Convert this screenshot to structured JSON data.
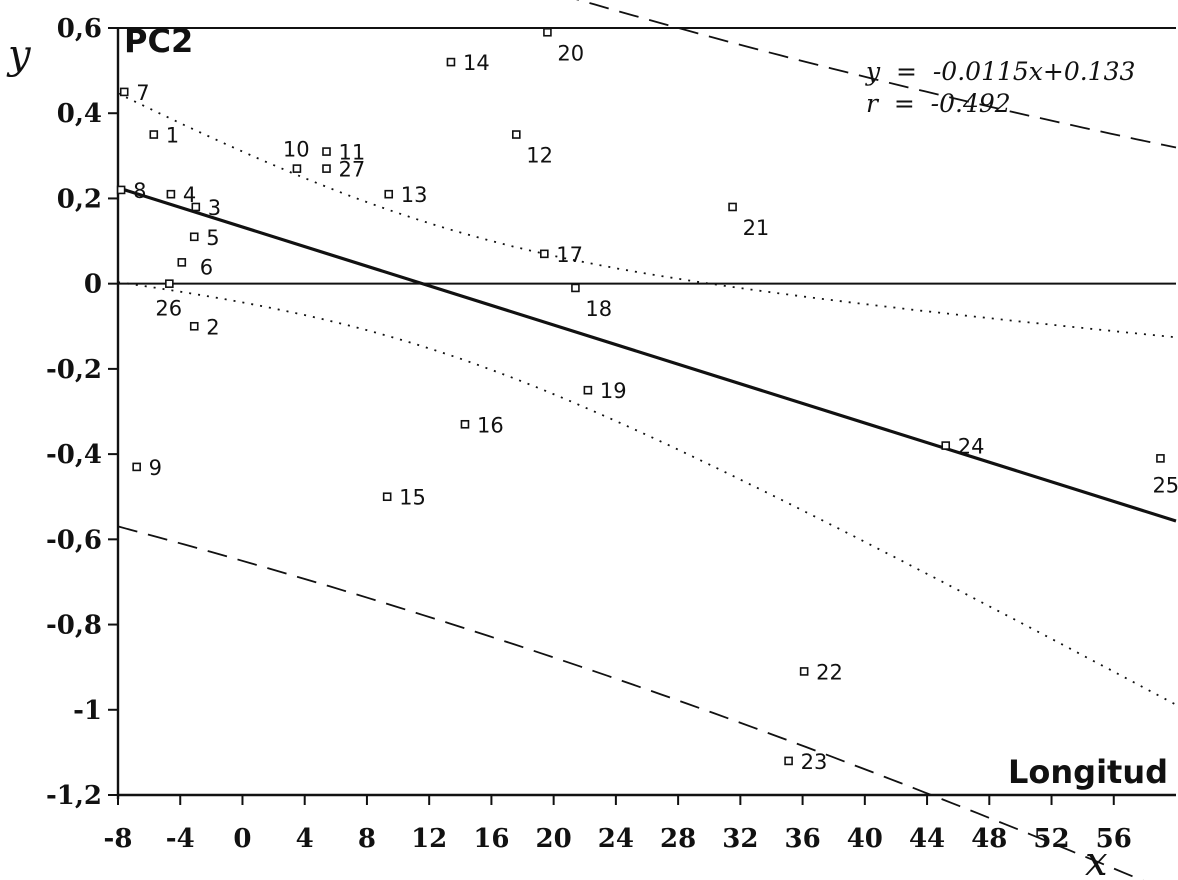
{
  "chart_data": {
    "type": "scatter",
    "ylabel": "y",
    "xlabel": "x",
    "panel_label": "PC2",
    "corner_label": "Longitud",
    "equation": "y  =  -0.0115x+0.133",
    "correlation": "r  =  -0.492",
    "xlim": [
      -8,
      60
    ],
    "ylim": [
      -1.2,
      0.6
    ],
    "x_ticks": [
      {
        "value": -8,
        "label": "-8"
      },
      {
        "value": -4,
        "label": "-4"
      },
      {
        "value": 0,
        "label": "0"
      },
      {
        "value": 4,
        "label": "4"
      },
      {
        "value": 8,
        "label": "8"
      },
      {
        "value": 12,
        "label": "12"
      },
      {
        "value": 16,
        "label": "16"
      },
      {
        "value": 20,
        "label": "20"
      },
      {
        "value": 24,
        "label": "24"
      },
      {
        "value": 28,
        "label": "28"
      },
      {
        "value": 32,
        "label": "32"
      },
      {
        "value": 36,
        "label": "36"
      },
      {
        "value": 40,
        "label": "40"
      },
      {
        "value": 44,
        "label": "44"
      },
      {
        "value": 48,
        "label": "48"
      },
      {
        "value": 52,
        "label": "52"
      },
      {
        "value": 56,
        "label": "56"
      }
    ],
    "y_ticks": [
      {
        "value": 0.6,
        "label": "0,6"
      },
      {
        "value": 0.4,
        "label": "0,4"
      },
      {
        "value": 0.2,
        "label": "0,2"
      },
      {
        "value": 0,
        "label": "0"
      },
      {
        "value": -0.2,
        "label": "-0,2"
      },
      {
        "value": -0.4,
        "label": "-0,4"
      },
      {
        "value": -0.6,
        "label": "-0,6"
      },
      {
        "value": -0.8,
        "label": "-0,8"
      },
      {
        "value": -1,
        "label": "-1"
      },
      {
        "value": -1.2,
        "label": "-1,2"
      }
    ],
    "regression": {
      "slope": -0.0115,
      "intercept": 0.133
    },
    "reference_line_y": 0,
    "points": [
      {
        "label": "1",
        "x": -5.7,
        "y": 0.35
      },
      {
        "label": "2",
        "x": -3.1,
        "y": -0.1
      },
      {
        "label": "3",
        "x": -3.0,
        "y": 0.18
      },
      {
        "label": "4",
        "x": -4.6,
        "y": 0.21
      },
      {
        "label": "5",
        "x": -3.1,
        "y": 0.11
      },
      {
        "label": "6",
        "x": -3.9,
        "y": 0.05
      },
      {
        "label": "7",
        "x": -7.6,
        "y": 0.45
      },
      {
        "label": "8",
        "x": -7.8,
        "y": 0.22
      },
      {
        "label": "9",
        "x": -6.8,
        "y": -0.43
      },
      {
        "label": "10",
        "x": 3.5,
        "y": 0.27
      },
      {
        "label": "11",
        "x": 5.4,
        "y": 0.31
      },
      {
        "label": "12",
        "x": 17.6,
        "y": 0.35
      },
      {
        "label": "13",
        "x": 9.4,
        "y": 0.21
      },
      {
        "label": "14",
        "x": 13.4,
        "y": 0.52
      },
      {
        "label": "15",
        "x": 9.3,
        "y": -0.5
      },
      {
        "label": "16",
        "x": 14.3,
        "y": -0.33
      },
      {
        "label": "17",
        "x": 19.4,
        "y": 0.07
      },
      {
        "label": "18",
        "x": 21.4,
        "y": -0.01
      },
      {
        "label": "19",
        "x": 22.2,
        "y": -0.25
      },
      {
        "label": "20",
        "x": 19.6,
        "y": 0.59
      },
      {
        "label": "21",
        "x": 31.5,
        "y": 0.18
      },
      {
        "label": "22",
        "x": 36.1,
        "y": -0.91
      },
      {
        "label": "23",
        "x": 35.1,
        "y": -1.12
      },
      {
        "label": "24",
        "x": 45.2,
        "y": -0.38
      },
      {
        "label": "25",
        "x": 59.0,
        "y": -0.41
      },
      {
        "label": "26",
        "x": -4.7,
        "y": 0.0
      },
      {
        "label": "27",
        "x": 5.4,
        "y": 0.27
      }
    ]
  }
}
